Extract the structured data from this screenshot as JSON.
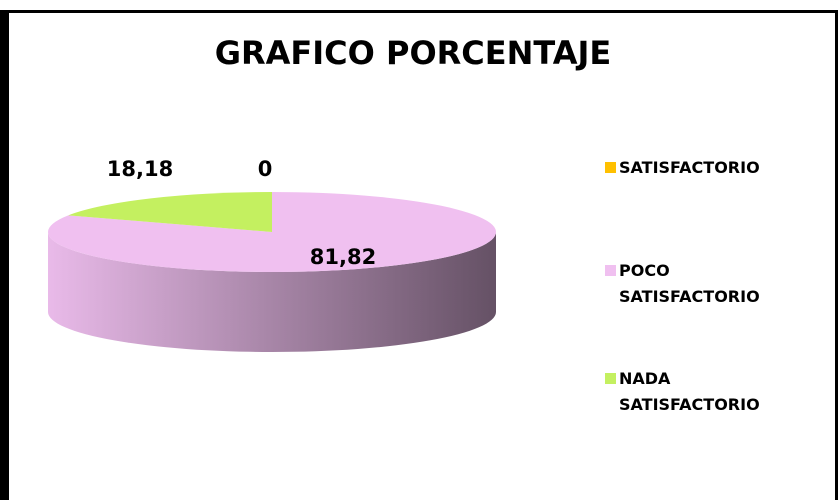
{
  "chart_data": {
    "type": "pie",
    "title": "GRAFICO PORCENTAJE",
    "categories": [
      "SATISFACTORIO",
      "POCO SATISFACTORIO",
      "NADA SATISFACTORIO"
    ],
    "values": [
      0,
      81.82,
      18.18
    ],
    "value_labels": [
      "0",
      "81,82",
      "18,18"
    ],
    "colors": [
      "#ffc000",
      "#f0c0f0",
      "#c4f060"
    ],
    "legend": "right"
  }
}
